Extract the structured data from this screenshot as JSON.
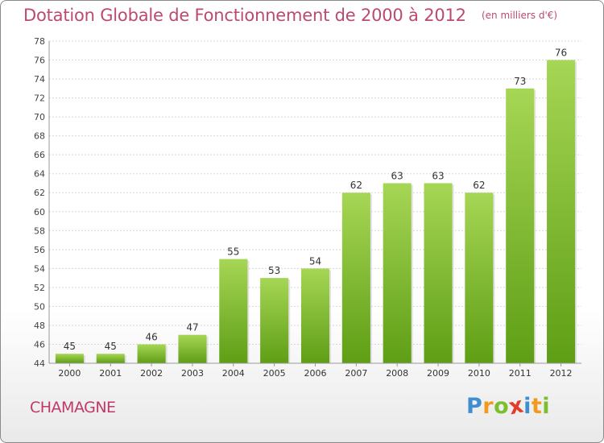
{
  "title": "Dotation Globale de Fonctionnement de 2000 à 2012",
  "subtitle": "(en milliers d'€)",
  "commune": "CHAMAGNE",
  "brand": {
    "letters": [
      {
        "ch": "P",
        "color": "#3f8fd0"
      },
      {
        "ch": "r",
        "color": "#f29a1f"
      },
      {
        "ch": "o",
        "color": "#7bbf2a"
      },
      {
        "ch": "x",
        "color": "#e23c2a"
      },
      {
        "ch": "i",
        "color": "#3f8fd0"
      },
      {
        "ch": "t",
        "color": "#f29a1f"
      },
      {
        "ch": "i",
        "color": "#7bbf2a"
      }
    ]
  },
  "colors": {
    "bar_top": "#a6d655",
    "bar_bottom": "#5e9e15",
    "title": "#ba4a73",
    "grid": "#d8d8d8"
  },
  "chart_data": {
    "type": "bar",
    "categories": [
      "2000",
      "2001",
      "2002",
      "2003",
      "2004",
      "2005",
      "2006",
      "2007",
      "2008",
      "2009",
      "2010",
      "2011",
      "2012"
    ],
    "values": [
      45,
      45,
      46,
      47,
      55,
      53,
      54,
      62,
      63,
      63,
      62,
      73,
      76
    ],
    "ylim": [
      44,
      78
    ],
    "yticks": [
      44,
      46,
      48,
      50,
      52,
      54,
      56,
      58,
      60,
      62,
      64,
      66,
      68,
      70,
      72,
      74,
      76,
      78
    ],
    "grid": true,
    "xlabel": "",
    "ylabel": ""
  }
}
